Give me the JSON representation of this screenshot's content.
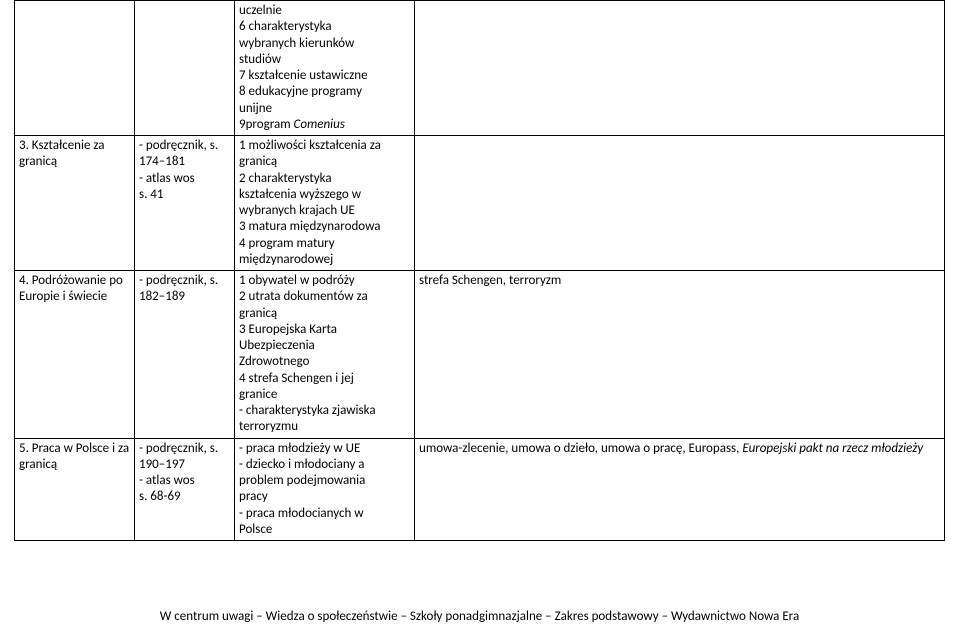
{
  "rows": [
    {
      "c1": "",
      "c2": "",
      "c3_lines": [
        "uczelnie",
        "6 charakterystyka",
        "wybranych kierunków",
        "studiów",
        "7 kształcenie ustawiczne",
        "8 edukacyjne programy",
        "unijne"
      ],
      "c3_tail_plain": "9program ",
      "c3_tail_italic": "Comenius",
      "c4": ""
    },
    {
      "c1": "3. Kształcenie za granicą",
      "c2_lines": [
        "- podręcznik, s.",
        "174–181",
        "- atlas wos",
        "s. 41"
      ],
      "c3_lines": [
        "1 możliwości kształcenia za",
        "granicą",
        "2 charakterystyka",
        "kształcenia wyższego w",
        "wybranych krajach UE",
        "3 matura międzynarodowa",
        "4 program matury",
        "międzynarodowej"
      ],
      "c4": ""
    },
    {
      "c1": "4. Podróżowanie po Europie i świecie",
      "c2_lines": [
        "- podręcznik, s.",
        "182–189"
      ],
      "c3_lines": [
        "1 obywatel w podróży",
        "2 utrata dokumentów za",
        "granicą",
        " 3 Europejska Karta",
        "Ubezpieczenia",
        "Zdrowotnego",
        "4  strefa Schengen i jej",
        "granice",
        "- charakterystyka zjawiska",
        "terroryzmu"
      ],
      "c4": "strefa Schengen, terroryzm"
    },
    {
      "c1": "5. Praca w Polsce i za granicą",
      "c2_lines": [
        "- podręcznik, s.",
        "190–197",
        "- atlas wos",
        "s. 68-69"
      ],
      "c3_lines": [
        "- praca młodzieży w UE",
        "- dziecko i młodociany a",
        "problem podejmowania",
        "pracy",
        "- praca młodocianych w",
        "Polsce"
      ],
      "c4_plain": "umowa-zlecenie, umowa o dzieło, umowa o pracę, Europass, ",
      "c4_italic": "Europejski pakt na rzecz młodzieży"
    }
  ],
  "footer": "W centrum uwagi – Wiedza o społeczeństwie – Szkoły ponadgimnazjalne – Zakres podstawowy – Wydawnictwo Nowa Era"
}
